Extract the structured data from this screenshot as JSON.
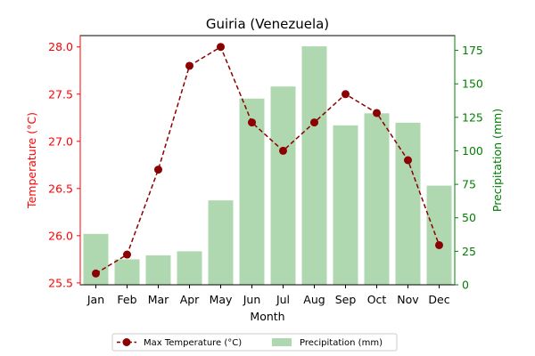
{
  "chart_data": {
    "type": "bar+line",
    "title": "Guiria (Venezuela)",
    "xlabel": "Month",
    "ylabel_left": "Temperature (°C)",
    "ylabel_right": "Precipitation (mm)",
    "categories": [
      "Jan",
      "Feb",
      "Mar",
      "Apr",
      "May",
      "Jun",
      "Jul",
      "Aug",
      "Sep",
      "Oct",
      "Nov",
      "Dec"
    ],
    "series": [
      {
        "name": "Max Temperature (°C)",
        "type": "line",
        "axis": "left",
        "color": "#8b0000",
        "values": [
          25.6,
          25.8,
          26.7,
          27.8,
          28.0,
          27.2,
          26.9,
          27.2,
          27.5,
          27.3,
          26.8,
          25.9
        ]
      },
      {
        "name": "Precipitation (mm)",
        "type": "bar",
        "axis": "right",
        "color": "#b0d8b0",
        "values": [
          38,
          19,
          22,
          25,
          63,
          139,
          148,
          178,
          119,
          128,
          121,
          74
        ]
      }
    ],
    "ylim_left": [
      25.48,
      28.12
    ],
    "yticks_left": [
      "25.5",
      "26.0",
      "26.5",
      "27.0",
      "27.5",
      "28.0"
    ],
    "ylim_right": [
      0,
      186
    ],
    "yticks_right": [
      "0",
      "25",
      "50",
      "75",
      "100",
      "125",
      "150",
      "175"
    ],
    "left_axis_color": "#ff0000",
    "right_axis_color": "#008000",
    "grid": false,
    "legend_position": "bottom-center"
  }
}
